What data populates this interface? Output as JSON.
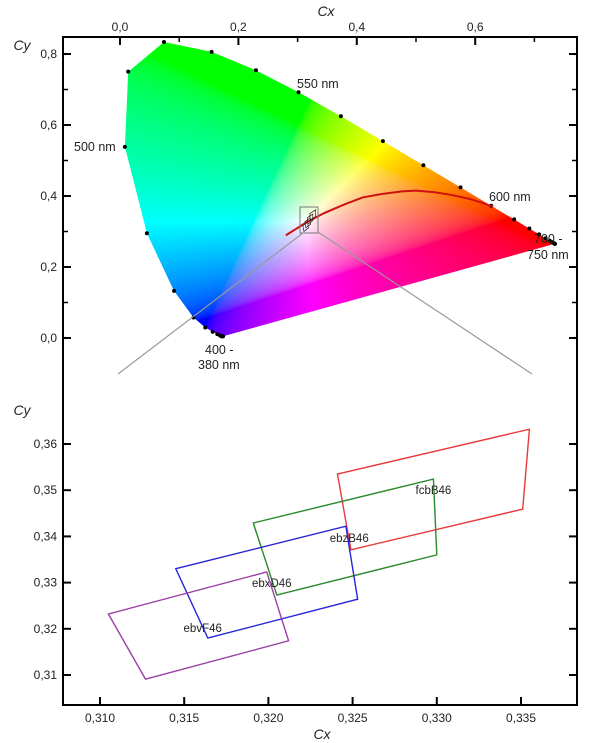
{
  "chart_data": [
    {
      "type": "scatter",
      "xlabel": "Cx",
      "ylabel": "Cy",
      "xlim": [
        -0.1,
        0.76
      ],
      "ylim": [
        -0.1,
        0.85
      ],
      "xticks": [
        "0,0",
        "0,2",
        "0,4",
        "0,6"
      ],
      "xtick_values": [
        0.0,
        0.2,
        0.4,
        0.6
      ],
      "yticks": [
        "0,0",
        "0,2",
        "0,4",
        "0,6",
        "0,8"
      ],
      "ytick_values": [
        0.0,
        0.2,
        0.4,
        0.6,
        0.8
      ],
      "x_axis_position": "top",
      "fill": "chromaticity color gamut",
      "spectral_locus": [
        [
          0.1741,
          0.005
        ],
        [
          0.1738,
          0.0049
        ],
        [
          0.1733,
          0.0048
        ],
        [
          0.1726,
          0.0048
        ],
        [
          0.1714,
          0.0051
        ],
        [
          0.1689,
          0.0069
        ],
        [
          0.1644,
          0.0109
        ],
        [
          0.1566,
          0.0177
        ],
        [
          0.144,
          0.0297
        ],
        [
          0.1241,
          0.0578
        ],
        [
          0.0913,
          0.1327
        ],
        [
          0.0454,
          0.295
        ],
        [
          0.0082,
          0.5384
        ],
        [
          0.0139,
          0.7502
        ],
        [
          0.0743,
          0.8338
        ],
        [
          0.1547,
          0.8059
        ],
        [
          0.2296,
          0.7543
        ],
        [
          0.3016,
          0.6923
        ],
        [
          0.3731,
          0.6245
        ],
        [
          0.4441,
          0.5547
        ],
        [
          0.5125,
          0.4866
        ],
        [
          0.5752,
          0.4242
        ],
        [
          0.627,
          0.3725
        ],
        [
          0.6658,
          0.334
        ],
        [
          0.6915,
          0.3083
        ],
        [
          0.7079,
          0.292
        ],
        [
          0.719,
          0.2809
        ],
        [
          0.726,
          0.274
        ],
        [
          0.73,
          0.27
        ],
        [
          0.732,
          0.268
        ],
        [
          0.7334,
          0.2666
        ],
        [
          0.7344,
          0.2656
        ],
        [
          0.7347,
          0.2653
        ]
      ],
      "planckian_locus": [
        [
          0.28,
          0.289
        ],
        [
          0.3,
          0.31
        ],
        [
          0.313,
          0.324
        ],
        [
          0.345,
          0.352
        ],
        [
          0.38,
          0.377
        ],
        [
          0.41,
          0.396
        ],
        [
          0.44,
          0.405
        ],
        [
          0.476,
          0.413
        ],
        [
          0.5,
          0.415
        ],
        [
          0.53,
          0.411
        ],
        [
          0.56,
          0.403
        ],
        [
          0.59,
          0.392
        ],
        [
          0.61,
          0.382
        ],
        [
          0.63,
          0.37
        ]
      ],
      "planckian_color": "#d01010",
      "zoom_box": {
        "x": [
          0.308,
          0.338
        ],
        "y": [
          0.3,
          0.37
        ]
      },
      "annotations": [
        {
          "text": "550 nm",
          "x": 0.3,
          "y": 0.7
        },
        {
          "text": "500 nm",
          "x": 0.008,
          "y": 0.538
        },
        {
          "text": "600 nm",
          "x": 0.627,
          "y": 0.3725
        },
        {
          "text": "700 -",
          "x": 0.735,
          "y": 0.265
        },
        {
          "text": "750 nm",
          "x": 0.735,
          "y": 0.265
        },
        {
          "text": "400 -",
          "x": 0.174,
          "y": 0.005
        },
        {
          "text": "380 nm",
          "x": 0.174,
          "y": 0.005
        }
      ]
    },
    {
      "type": "line",
      "xlabel": "Cx",
      "ylabel": "Cy",
      "xlim": [
        0.308,
        0.3385
      ],
      "ylim": [
        0.3035,
        0.3675
      ],
      "xticks": [
        "0,310",
        "0,315",
        "0,320",
        "0,325",
        "0,330",
        "0,335"
      ],
      "xtick_values": [
        0.31,
        0.315,
        0.32,
        0.325,
        0.33,
        0.335
      ],
      "yticks": [
        "0,31",
        "0,32",
        "0,33",
        "0,34",
        "0,35",
        "0,36"
      ],
      "ytick_values": [
        0.31,
        0.32,
        0.33,
        0.34,
        0.35,
        0.36
      ],
      "series": [
        {
          "name": "fcbB46",
          "color": "#e8393a",
          "points": [
            [
              0.3241,
              0.3535
            ],
            [
              0.3355,
              0.3632
            ],
            [
              0.3351,
              0.3459
            ],
            [
              0.3249,
              0.3371
            ]
          ],
          "label_at": [
            0.3298,
            0.35
          ]
        },
        {
          "name": "ebzB46",
          "color": "#2a8a2a",
          "points": [
            [
              0.3191,
              0.3429
            ],
            [
              0.3298,
              0.3524
            ],
            [
              0.33,
              0.336
            ],
            [
              0.3205,
              0.3273
            ]
          ],
          "label_at": [
            0.3248,
            0.3397
          ]
        },
        {
          "name": "ebxD46",
          "color": "#2525d8",
          "points": [
            [
              0.3145,
              0.333
            ],
            [
              0.3246,
              0.3422
            ],
            [
              0.3253,
              0.3264
            ],
            [
              0.3164,
              0.318
            ]
          ],
          "label_at": [
            0.3202,
            0.3299
          ]
        },
        {
          "name": "ebvF46",
          "color": "#9a3fa6",
          "points": [
            [
              0.3105,
              0.3232
            ],
            [
              0.3199,
              0.3323
            ],
            [
              0.3212,
              0.3174
            ],
            [
              0.3127,
              0.3091
            ]
          ],
          "label_at": [
            0.3161,
            0.3202
          ]
        }
      ]
    }
  ]
}
